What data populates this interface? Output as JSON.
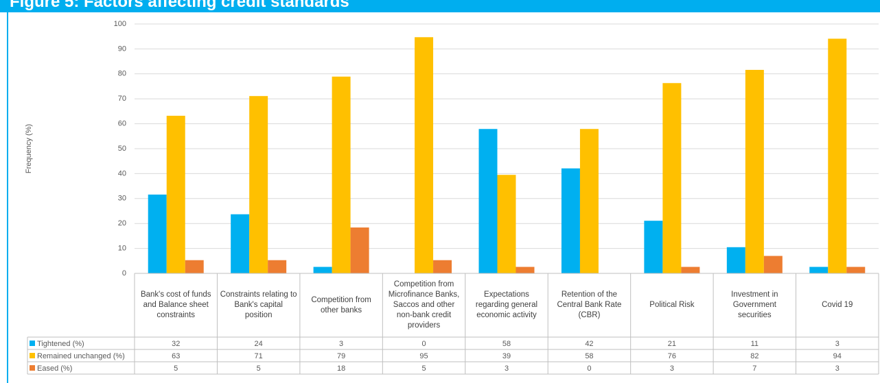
{
  "header": {
    "title": "Figure 5: Factors affecting credit standards"
  },
  "chart_data": {
    "type": "bar",
    "ylabel": "Frequency (%)",
    "categories": [
      "Bank's cost of funds and Balance sheet constraints",
      "Constraints relating to Bank's capital position",
      "Competition from other banks",
      "Competition from Microfinance Banks, Saccos and other non-bank credit providers",
      "Expectations regarding general economic activity",
      "Retention of the Central Bank Rate (CBR)",
      "Political Risk",
      "Investment in Government securities",
      "Covid 19"
    ],
    "series": [
      {
        "name": "Tightened (%)",
        "color": "#00b0f0",
        "values": [
          31.6,
          23.7,
          2.6,
          0,
          57.9,
          42.1,
          21.1,
          10.5,
          2.6
        ],
        "value_labels": [
          "32",
          "24",
          "3",
          "0",
          "58",
          "42",
          "21",
          "11",
          "3"
        ]
      },
      {
        "name": "Remained unchanged (%)",
        "color": "#ffc000",
        "values": [
          63.2,
          71.1,
          78.9,
          94.7,
          39.5,
          57.9,
          76.3,
          81.6,
          94.1
        ],
        "value_labels": [
          "63",
          "71",
          "79",
          "95",
          "39",
          "58",
          "76",
          "82",
          "94"
        ]
      },
      {
        "name": "Eased (%)",
        "color": "#ed7d31",
        "values": [
          5.3,
          5.3,
          18.4,
          5.3,
          2.6,
          0,
          2.6,
          7.0,
          2.6
        ],
        "value_labels": [
          "5",
          "5",
          "18",
          "5",
          "3",
          "0",
          "3",
          "7",
          "3"
        ]
      }
    ],
    "ylim": [
      0,
      100
    ],
    "yticks": [
      0,
      10,
      20,
      30,
      40,
      50,
      60,
      70,
      80,
      90,
      100
    ],
    "grid": true
  }
}
